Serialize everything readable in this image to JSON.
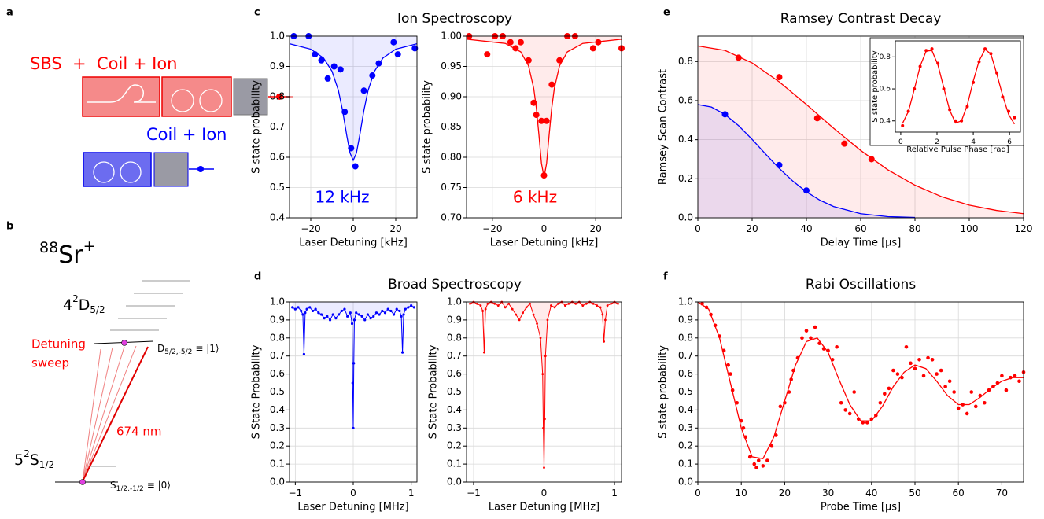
{
  "panel_labels": [
    "a",
    "b",
    "c",
    "d",
    "e",
    "f"
  ],
  "diagram_a": {
    "row1": "SBS  +  Coil + Ion",
    "row2": "Coil + Ion"
  },
  "diagram_b": {
    "isotope": {
      "mass": "88",
      "element": "Sr",
      "charge": "+"
    },
    "d_level": {
      "n": "4",
      "mult": "2",
      "term": "D",
      "j": "5/2"
    },
    "s_level": {
      "n": "5",
      "mult": "2",
      "term": "S",
      "j": "1/2"
    },
    "upper_state": {
      "symbol": "D",
      "sub": "5/2,-5/2",
      "ket": "≡ |1⟩"
    },
    "lower_state": {
      "symbol": "S",
      "sub": "1/2,-1/2",
      "ket": "≡ |0⟩"
    },
    "sweep": [
      "Detuning",
      "sweep"
    ],
    "wavelength": "674 nm"
  },
  "chart_data": [
    {
      "type": "scatter",
      "title": "Ion Spectroscopy",
      "xlabel": "Laser Detuning [kHz]",
      "ylabel": "S state probability",
      "annotation": "12 kHz",
      "grid": true,
      "xlim": [
        -30,
        30
      ],
      "xticks": [
        {
          "value": -20,
          "label": "−20"
        },
        0,
        20
      ],
      "ylim": [
        0.4,
        1.0
      ],
      "yticks": [
        0.4,
        0.5,
        0.6,
        0.7,
        0.8,
        0.9,
        {
          "value": 1,
          "label": "1.0"
        }
      ],
      "series": [
        {
          "color": "#0000ff",
          "mode": "line",
          "fill": "top",
          "x": [
            -30,
            -20,
            -14,
            -10,
            -7,
            -5,
            -3,
            -1.5,
            0,
            1.5,
            3,
            5,
            7,
            10,
            14,
            20,
            30
          ],
          "values": [
            0.975,
            0.957,
            0.928,
            0.884,
            0.821,
            0.754,
            0.67,
            0.614,
            0.59,
            0.614,
            0.67,
            0.754,
            0.821,
            0.884,
            0.928,
            0.957,
            0.975
          ]
        },
        {
          "color": "#0000ff",
          "mode": "markers",
          "x": [
            -28,
            -21,
            -18,
            -15,
            -12,
            -9,
            -6,
            -4,
            -1,
            1,
            5,
            9,
            12,
            19,
            21,
            29
          ],
          "values": [
            1.0,
            1.0,
            0.94,
            0.92,
            0.86,
            0.9,
            0.89,
            0.75,
            0.63,
            0.57,
            0.82,
            0.87,
            0.91,
            0.98,
            0.94,
            0.96
          ]
        }
      ]
    },
    {
      "type": "scatter",
      "xlabel": "Laser Detuning [kHz]",
      "ylabel": "S state probability",
      "annotation": "6 kHz",
      "grid": true,
      "xlim": [
        -30,
        30
      ],
      "xticks": [
        {
          "value": -20,
          "label": "−20"
        },
        0,
        20
      ],
      "ylim": [
        0.7,
        1.0
      ],
      "yticks": [
        {
          "value": 0.7,
          "label": "0.70"
        },
        0.75,
        {
          "value": 0.8,
          "label": "0.80"
        },
        0.85,
        {
          "value": 0.9,
          "label": "0.90"
        },
        0.95,
        {
          "value": 1,
          "label": "1.00"
        }
      ],
      "series": [
        {
          "color": "#ff0000",
          "mode": "line",
          "fill": "top",
          "x": [
            -30,
            -15,
            -9,
            -6,
            -4,
            -3,
            -2,
            -1,
            0,
            1,
            2,
            3,
            4,
            6,
            9,
            15,
            30
          ],
          "values": [
            0.995,
            0.988,
            0.974,
            0.951,
            0.914,
            0.882,
            0.838,
            0.79,
            0.767,
            0.79,
            0.838,
            0.882,
            0.914,
            0.951,
            0.974,
            0.988,
            0.995
          ]
        },
        {
          "color": "#ff0000",
          "mode": "markers",
          "x": [
            -29,
            -22,
            -19,
            -16,
            -13,
            -11,
            -9,
            -6,
            -4,
            -3,
            -1,
            0,
            1,
            3,
            6,
            9,
            12,
            19,
            21,
            30
          ],
          "values": [
            1.0,
            0.97,
            1.0,
            1.0,
            0.99,
            0.98,
            0.99,
            0.96,
            0.89,
            0.87,
            0.86,
            0.77,
            0.86,
            0.92,
            0.96,
            1.0,
            1.0,
            0.98,
            0.99,
            0.98
          ]
        }
      ]
    },
    {
      "type": "scatter",
      "title": "Broad Spectroscopy",
      "xlabel": "Laser Detuning [MHz]",
      "ylabel": "S State Probability",
      "grid": true,
      "xlim": [
        -1.1,
        1.1
      ],
      "xticks": [
        {
          "value": -1,
          "label": "−1"
        },
        0,
        1
      ],
      "ylim": [
        0,
        1
      ],
      "yticks": [
        {
          "value": 0,
          "label": "0.0"
        },
        0.1,
        0.2,
        0.3,
        0.4,
        0.5,
        0.6,
        0.7,
        0.8,
        0.9,
        {
          "value": 1,
          "label": "1.0"
        }
      ],
      "series": [
        {
          "color": "#0000ff",
          "mode": "line+markers",
          "fill": "top",
          "x": [
            -1.05,
            -1.0,
            -0.95,
            -0.9,
            -0.87,
            -0.85,
            -0.83,
            -0.8,
            -0.75,
            -0.7,
            -0.65,
            -0.6,
            -0.55,
            -0.5,
            -0.45,
            -0.4,
            -0.35,
            -0.3,
            -0.25,
            -0.2,
            -0.15,
            -0.1,
            -0.05,
            -0.02,
            -0.01,
            0,
            0.01,
            0.02,
            0.05,
            0.1,
            0.15,
            0.2,
            0.25,
            0.3,
            0.35,
            0.4,
            0.45,
            0.5,
            0.55,
            0.6,
            0.65,
            0.7,
            0.75,
            0.8,
            0.83,
            0.85,
            0.87,
            0.9,
            0.95,
            1.0,
            1.05
          ],
          "values": [
            0.97,
            0.96,
            0.97,
            0.95,
            0.93,
            0.71,
            0.94,
            0.96,
            0.97,
            0.95,
            0.96,
            0.94,
            0.93,
            0.91,
            0.92,
            0.9,
            0.93,
            0.91,
            0.93,
            0.95,
            0.96,
            0.92,
            0.94,
            0.88,
            0.55,
            0.3,
            0.66,
            0.9,
            0.94,
            0.93,
            0.92,
            0.9,
            0.93,
            0.91,
            0.92,
            0.94,
            0.93,
            0.95,
            0.94,
            0.96,
            0.95,
            0.93,
            0.96,
            0.95,
            0.92,
            0.72,
            0.93,
            0.96,
            0.97,
            0.98,
            0.97
          ]
        }
      ]
    },
    {
      "type": "scatter",
      "xlabel": "Laser Detuning [MHz]",
      "ylabel": "S State Probability",
      "grid": true,
      "xlim": [
        -1.1,
        1.1
      ],
      "xticks": [
        {
          "value": -1,
          "label": "−1"
        },
        0,
        1
      ],
      "ylim": [
        0,
        1
      ],
      "yticks": [
        {
          "value": 0,
          "label": "0.0"
        },
        0.1,
        0.2,
        0.3,
        0.4,
        0.5,
        0.6,
        0.7,
        0.8,
        0.9,
        {
          "value": 1,
          "label": "1.0"
        }
      ],
      "series": [
        {
          "color": "#ff0000",
          "mode": "line+markers",
          "fill": "top",
          "x": [
            -1.05,
            -1.0,
            -0.95,
            -0.9,
            -0.87,
            -0.85,
            -0.83,
            -0.8,
            -0.75,
            -0.7,
            -0.65,
            -0.6,
            -0.55,
            -0.5,
            -0.45,
            -0.4,
            -0.35,
            -0.3,
            -0.25,
            -0.2,
            -0.15,
            -0.1,
            -0.05,
            -0.02,
            -0.01,
            0,
            0.01,
            0.02,
            0.05,
            0.1,
            0.15,
            0.2,
            0.25,
            0.3,
            0.35,
            0.4,
            0.45,
            0.5,
            0.55,
            0.6,
            0.65,
            0.7,
            0.75,
            0.8,
            0.83,
            0.85,
            0.87,
            0.9,
            0.95,
            1.0,
            1.05
          ],
          "values": [
            0.99,
            1.0,
            0.99,
            0.98,
            0.95,
            0.72,
            0.96,
            0.99,
            1.0,
            0.99,
            0.98,
            1.0,
            0.97,
            0.99,
            0.96,
            0.93,
            0.9,
            0.94,
            0.97,
            0.99,
            0.93,
            0.88,
            0.8,
            0.6,
            0.3,
            0.08,
            0.35,
            0.7,
            0.9,
            0.98,
            0.97,
            0.99,
            1.0,
            0.98,
            0.99,
            1.0,
            0.99,
            1.0,
            0.98,
            0.99,
            1.0,
            0.99,
            0.98,
            0.97,
            0.93,
            0.78,
            0.9,
            0.98,
            0.99,
            1.0,
            0.99
          ]
        }
      ]
    },
    {
      "type": "scatter",
      "title": "Ramsey Contrast Decay",
      "xlabel": "Delay Time [μs]",
      "ylabel": "Ramsey Scan Contrast",
      "grid": true,
      "xlim": [
        0,
        120
      ],
      "xticks": [
        0,
        20,
        40,
        60,
        80,
        100,
        120
      ],
      "ylim": [
        0,
        0.93
      ],
      "yticks": [
        {
          "value": 0,
          "label": "0.0"
        },
        0.2,
        0.4,
        0.6,
        0.8
      ],
      "series": [
        {
          "color": "#ff0000",
          "mode": "line",
          "fill": "bottom",
          "x": [
            0,
            10,
            20,
            30,
            40,
            50,
            60,
            70,
            80,
            90,
            100,
            110,
            120
          ],
          "values": [
            0.88,
            0.857,
            0.793,
            0.696,
            0.58,
            0.459,
            0.345,
            0.246,
            0.167,
            0.107,
            0.065,
            0.038,
            0.021
          ]
        },
        {
          "color": "#0000ff",
          "mode": "line",
          "fill": "bottom",
          "x": [
            0,
            5,
            10,
            15,
            20,
            25,
            30,
            35,
            40,
            45,
            50,
            60,
            70,
            80
          ],
          "values": [
            0.58,
            0.567,
            0.529,
            0.472,
            0.402,
            0.326,
            0.253,
            0.188,
            0.133,
            0.09,
            0.058,
            0.021,
            0.006,
            0.002
          ]
        },
        {
          "color": "#ff0000",
          "mode": "markers",
          "x": [
            15,
            30,
            44,
            54,
            64
          ],
          "values": [
            0.82,
            0.72,
            0.51,
            0.38,
            0.3
          ]
        },
        {
          "color": "#0000ff",
          "mode": "markers",
          "x": [
            10,
            30,
            40
          ],
          "values": [
            0.53,
            0.27,
            0.14
          ]
        }
      ]
    },
    {
      "type": "scatter",
      "xlabel": "Relative Pulse Phase [rad]",
      "ylabel": "S state probability",
      "grid": false,
      "xlim": [
        -0.3,
        6.6
      ],
      "xticks": [
        0,
        2,
        4,
        6
      ],
      "ylim": [
        0.33,
        0.9
      ],
      "yticks": [
        0.4,
        0.6,
        0.8
      ],
      "series": [
        {
          "color": "#ff0000",
          "mode": "line",
          "x": [
            0.1,
            0.42,
            0.75,
            1.07,
            1.4,
            1.72,
            2.05,
            2.37,
            2.7,
            3.02,
            3.35,
            3.67,
            4.0,
            4.32,
            4.65,
            4.97,
            5.3,
            5.62,
            5.95,
            6.27
          ],
          "values": [
            0.385,
            0.458,
            0.598,
            0.742,
            0.836,
            0.84,
            0.75,
            0.609,
            0.466,
            0.387,
            0.4,
            0.499,
            0.649,
            0.775,
            0.847,
            0.818,
            0.692,
            0.559,
            0.44,
            0.38
          ]
        },
        {
          "color": "#ff0000",
          "mode": "markers",
          "x": [
            0.1,
            0.42,
            0.75,
            1.07,
            1.4,
            1.72,
            2.05,
            2.37,
            2.7,
            3.02,
            3.35,
            3.67,
            4.0,
            4.32,
            4.65,
            4.97,
            5.3,
            5.62,
            5.95,
            6.27
          ],
          "values": [
            0.37,
            0.46,
            0.6,
            0.74,
            0.84,
            0.85,
            0.76,
            0.6,
            0.47,
            0.4,
            0.4,
            0.49,
            0.64,
            0.77,
            0.85,
            0.82,
            0.7,
            0.55,
            0.46,
            0.42
          ]
        }
      ]
    },
    {
      "type": "scatter",
      "title": "Rabi Oscillations",
      "xlabel": "Probe Time [μs]",
      "ylabel": "S state probability",
      "grid": true,
      "xlim": [
        0,
        75
      ],
      "xticks": [
        0,
        10,
        20,
        30,
        40,
        50,
        60,
        70
      ],
      "ylim": [
        0,
        1
      ],
      "yticks": [
        {
          "value": 0,
          "label": "0.0"
        },
        0.1,
        0.2,
        0.3,
        0.4,
        0.5,
        0.6,
        0.7,
        0.8,
        0.9,
        {
          "value": 1,
          "label": "1.0"
        }
      ],
      "series": [
        {
          "color": "#ff0000",
          "mode": "line",
          "x": [
            0,
            2.5,
            5,
            7.5,
            10,
            12.5,
            15,
            17.5,
            20,
            22.5,
            25,
            27.5,
            30,
            32.5,
            35,
            37.5,
            40,
            42.5,
            45,
            47.5,
            50,
            52.5,
            55,
            57.5,
            60,
            62.5,
            65,
            67.5,
            70,
            72.5,
            75
          ],
          "values": [
            1.0,
            0.96,
            0.8,
            0.55,
            0.3,
            0.14,
            0.13,
            0.25,
            0.45,
            0.65,
            0.78,
            0.8,
            0.72,
            0.57,
            0.43,
            0.34,
            0.34,
            0.42,
            0.53,
            0.61,
            0.65,
            0.63,
            0.56,
            0.48,
            0.43,
            0.43,
            0.47,
            0.52,
            0.56,
            0.58,
            0.58
          ]
        },
        {
          "color": "#ff0000",
          "mode": "markers",
          "x": [
            1,
            2,
            3,
            4,
            5,
            6,
            7,
            7.5,
            8,
            9,
            10,
            10.5,
            11,
            12,
            13,
            13.5,
            14,
            15,
            16,
            17,
            18,
            19,
            20,
            21,
            21.5,
            22,
            23,
            24,
            25,
            26,
            27,
            28,
            29,
            30,
            31,
            32,
            33,
            34,
            35,
            36,
            37,
            38,
            39,
            40,
            41,
            42,
            43,
            44,
            45,
            46,
            47,
            48,
            49,
            50,
            51,
            52,
            53,
            54,
            55,
            56,
            57,
            58,
            59,
            60,
            61,
            62,
            63,
            64,
            65,
            66,
            67,
            68,
            69,
            70,
            71,
            72,
            73,
            74,
            75
          ],
          "values": [
            0.99,
            0.97,
            0.93,
            0.87,
            0.81,
            0.73,
            0.65,
            0.6,
            0.51,
            0.44,
            0.34,
            0.3,
            0.25,
            0.14,
            0.1,
            0.08,
            0.12,
            0.09,
            0.12,
            0.2,
            0.26,
            0.42,
            0.44,
            0.5,
            0.57,
            0.62,
            0.69,
            0.8,
            0.84,
            0.8,
            0.86,
            0.77,
            0.74,
            0.73,
            0.68,
            0.75,
            0.44,
            0.4,
            0.38,
            0.5,
            0.35,
            0.33,
            0.33,
            0.35,
            0.37,
            0.44,
            0.49,
            0.52,
            0.62,
            0.6,
            0.58,
            0.75,
            0.66,
            0.63,
            0.68,
            0.59,
            0.69,
            0.68,
            0.6,
            0.62,
            0.53,
            0.56,
            0.5,
            0.41,
            0.43,
            0.38,
            0.5,
            0.42,
            0.48,
            0.44,
            0.51,
            0.53,
            0.55,
            0.59,
            0.51,
            0.58,
            0.59,
            0.56,
            0.61
          ]
        }
      ]
    }
  ]
}
